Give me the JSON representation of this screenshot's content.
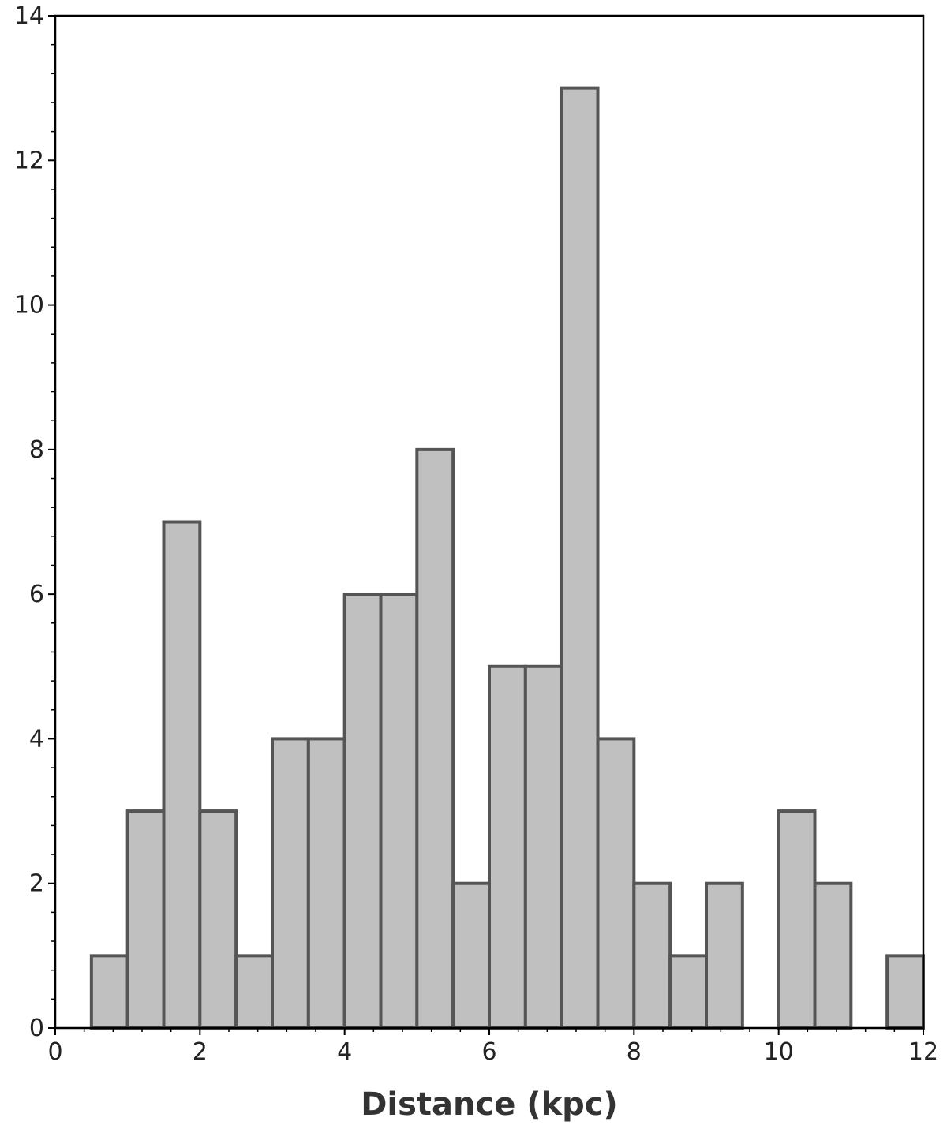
{
  "chart_data": {
    "type": "bar",
    "title": "",
    "xlabel": "Distance (kpc)",
    "ylabel": "",
    "xlim": [
      0,
      12
    ],
    "ylim": [
      0,
      14
    ],
    "x_ticks": [
      0,
      2,
      4,
      6,
      8,
      10,
      12
    ],
    "y_ticks": [
      0,
      2,
      4,
      6,
      8,
      10,
      12,
      14
    ],
    "x_tick_labels": [
      "0",
      "2",
      "4",
      "6",
      "8",
      "10",
      "12"
    ],
    "y_tick_labels": [
      "0",
      "2",
      "4",
      "6",
      "8",
      "10",
      "12",
      "14"
    ],
    "bins": [
      {
        "x0": 0.5,
        "x1": 1.0,
        "count": 1
      },
      {
        "x0": 1.0,
        "x1": 1.5,
        "count": 3
      },
      {
        "x0": 1.5,
        "x1": 2.0,
        "count": 7
      },
      {
        "x0": 2.0,
        "x1": 2.5,
        "count": 3
      },
      {
        "x0": 2.5,
        "x1": 3.0,
        "count": 1
      },
      {
        "x0": 3.0,
        "x1": 3.5,
        "count": 4
      },
      {
        "x0": 3.5,
        "x1": 4.0,
        "count": 4
      },
      {
        "x0": 4.0,
        "x1": 4.5,
        "count": 6
      },
      {
        "x0": 4.5,
        "x1": 5.0,
        "count": 6
      },
      {
        "x0": 5.0,
        "x1": 5.5,
        "count": 8
      },
      {
        "x0": 5.5,
        "x1": 6.0,
        "count": 2
      },
      {
        "x0": 6.0,
        "x1": 6.5,
        "count": 5
      },
      {
        "x0": 6.5,
        "x1": 7.0,
        "count": 5
      },
      {
        "x0": 7.0,
        "x1": 7.5,
        "count": 13
      },
      {
        "x0": 7.5,
        "x1": 8.0,
        "count": 4
      },
      {
        "x0": 8.0,
        "x1": 8.5,
        "count": 2
      },
      {
        "x0": 8.5,
        "x1": 9.0,
        "count": 1
      },
      {
        "x0": 9.0,
        "x1": 9.5,
        "count": 2
      },
      {
        "x0": 9.5,
        "x1": 10.0,
        "count": 0
      },
      {
        "x0": 10.0,
        "x1": 10.5,
        "count": 3
      },
      {
        "x0": 10.5,
        "x1": 11.0,
        "count": 2
      },
      {
        "x0": 11.0,
        "x1": 11.5,
        "count": 0
      },
      {
        "x0": 11.5,
        "x1": 12.0,
        "count": 1
      }
    ],
    "bar_fill": "#c0c0c0",
    "bar_edge": "#555555",
    "grid": false,
    "legend": "none"
  }
}
